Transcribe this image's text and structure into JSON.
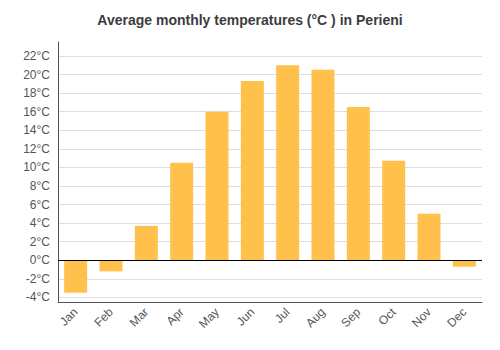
{
  "chart_data": {
    "type": "bar",
    "title": "Average monthly temperatures (°C ) in Perieni",
    "categories": [
      "Jan",
      "Feb",
      "Mar",
      "Apr",
      "May",
      "Jun",
      "Jul",
      "Aug",
      "Sep",
      "Oct",
      "Nov",
      "Dec"
    ],
    "values": [
      -3.5,
      -1.2,
      3.7,
      10.5,
      16.0,
      19.3,
      21.0,
      20.5,
      16.5,
      10.7,
      5.0,
      -0.7
    ],
    "color": "#FFC04C",
    "ylim": [
      -4.5,
      23.5
    ],
    "yticks": [
      {
        "value": -4,
        "label": "-4°C"
      },
      {
        "value": -2,
        "label": "-2°C"
      },
      {
        "value": 0,
        "label": "0°C"
      },
      {
        "value": 2,
        "label": "2°C"
      },
      {
        "value": 4,
        "label": "4°C"
      },
      {
        "value": 6,
        "label": "6°C"
      },
      {
        "value": 8,
        "label": "8°C"
      },
      {
        "value": 10,
        "label": "10°C"
      },
      {
        "value": 12,
        "label": "12°C"
      },
      {
        "value": 14,
        "label": "14°C"
      },
      {
        "value": 16,
        "label": "16°C"
      },
      {
        "value": 18,
        "label": "18°C"
      },
      {
        "value": 20,
        "label": "20°C"
      },
      {
        "value": 22,
        "label": "22°C"
      }
    ],
    "grid": true
  }
}
